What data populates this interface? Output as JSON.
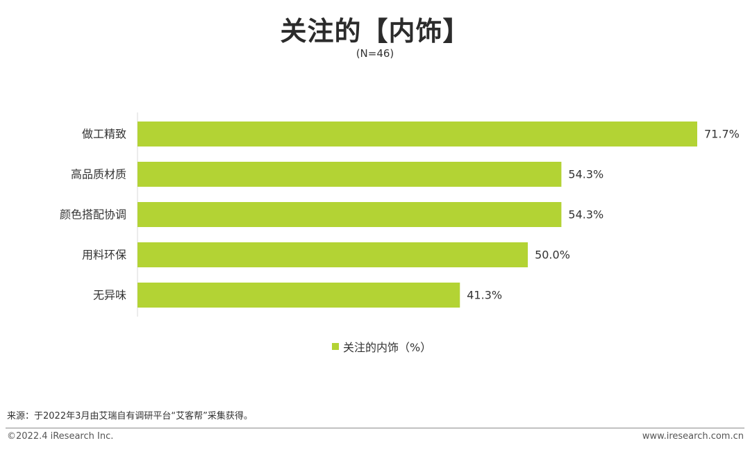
{
  "colors": {
    "bar": "#b3d334",
    "axis": "#d9d9d9",
    "text": "#333333"
  },
  "chart_data": {
    "type": "bar",
    "orientation": "horizontal",
    "title": "关注的【内饰】",
    "subtitle": "(N=46)",
    "categories": [
      "做工精致",
      "高品质材质",
      "颜色搭配协调",
      "用料环保",
      "无异味"
    ],
    "series": [
      {
        "name": "关注的内饰（%）",
        "values": [
          71.7,
          54.3,
          54.3,
          50.0,
          41.3
        ],
        "labels": [
          "71.7%",
          "54.3%",
          "54.3%",
          "50.0%",
          "41.3%"
        ]
      }
    ],
    "xlim": [
      0,
      80
    ],
    "grid": false,
    "legend": "bottom-center"
  },
  "footer": {
    "source": "来源：于2022年3月由艾瑞自有调研平台“艾客帮”采集获得。",
    "copyright": "©2022.4 iResearch Inc.",
    "website": "www.iresearch.com.cn"
  }
}
